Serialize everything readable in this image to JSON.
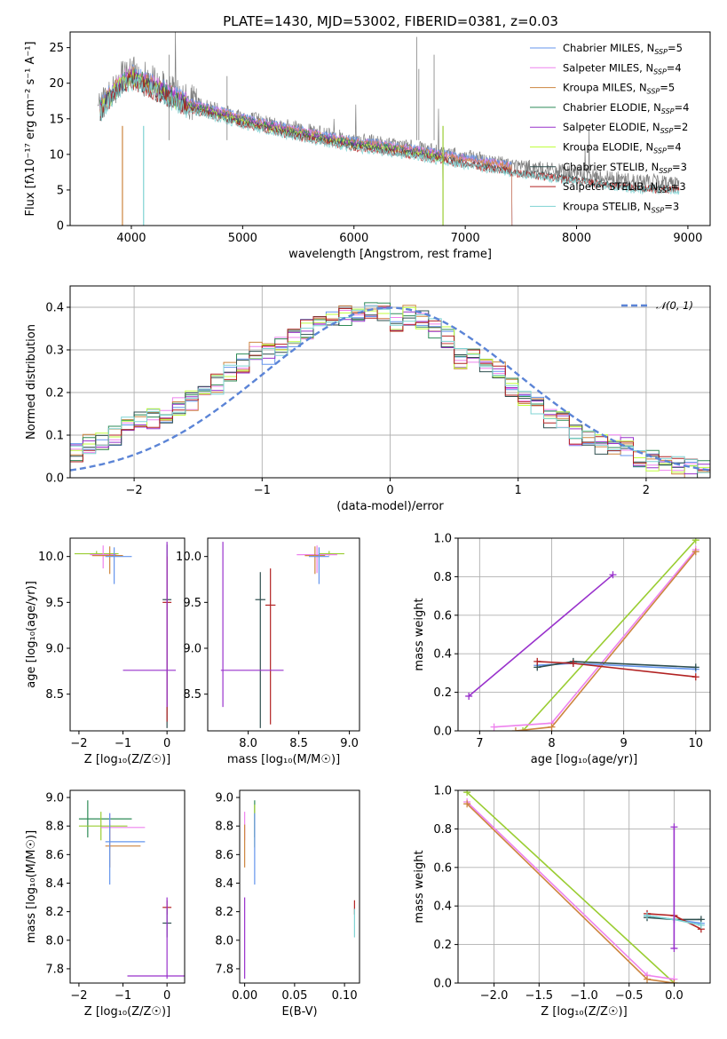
{
  "chart_data": [
    {
      "id": "spectrum",
      "type": "line",
      "title": "PLATE=1430, MJD=53002, FIBERID=0381, z=0.03",
      "xlabel": "wavelength [Angstrom, rest frame]",
      "ylabel": "Flux [fλ10⁻¹⁷ erg cm⁻² s⁻¹ A⁻¹]",
      "xlim": [
        3450,
        9200
      ],
      "ylim": [
        0,
        27.2
      ],
      "xticks": [
        4000,
        5000,
        6000,
        7000,
        8000,
        9000
      ],
      "yticks": [
        0,
        5,
        10,
        15,
        20,
        25
      ],
      "legend_position": "top-right",
      "data_trace": {
        "name": "",
        "color": "#808080",
        "x": [
          3700,
          3800,
          3900,
          4000,
          4200,
          4500,
          5000,
          5500,
          6000,
          6500,
          7000,
          7500,
          8000,
          8500,
          8920
        ],
        "y": [
          16.5,
          18.5,
          20.5,
          21.5,
          20.0,
          17.5,
          15.3,
          13.5,
          12.0,
          11.0,
          9.6,
          8.3,
          7.3,
          6.3,
          6.0
        ]
      },
      "series": [
        {
          "name": "Chabrier MILES, N",
          "sub": "SSP",
          "suffix": "=5",
          "color": "#6495ed",
          "xmax": 7420
        },
        {
          "name": "Salpeter MILES, N",
          "sub": "SSP",
          "suffix": "=4",
          "color": "#ee82ee",
          "xmax": 7420
        },
        {
          "name": "Kroupa MILES, N",
          "sub": "SSP",
          "suffix": "=5",
          "color": "#cd853f",
          "xmax": 7420
        },
        {
          "name": "Chabrier ELODIE, N",
          "sub": "SSP",
          "suffix": "=4",
          "color": "#2e8b57",
          "xmax": 6800
        },
        {
          "name": "Salpeter ELODIE, N",
          "sub": "SSP",
          "suffix": "=2",
          "color": "#9932cc",
          "xmax": 6800
        },
        {
          "name": "Kroupa ELODIE, N",
          "sub": "SSP",
          "suffix": "=4",
          "color": "#c0ff3e",
          "xmax": 6800
        },
        {
          "name": "Chabrier STELIB, N",
          "sub": "SSP",
          "suffix": "=3",
          "color": "#2f4f4f",
          "xmax": 8920
        },
        {
          "name": "Salpeter STELIB, N",
          "sub": "SSP",
          "suffix": "=3",
          "color": "#b22222",
          "xmax": 8920
        },
        {
          "name": "Kroupa STELIB, N",
          "sub": "SSP",
          "suffix": "=3",
          "color": "#7fd3d3",
          "xmax": 8920
        }
      ]
    },
    {
      "id": "residuals",
      "type": "line",
      "xlabel": "(data-model)/error",
      "ylabel": "Normed distribution",
      "xlim": [
        -2.5,
        2.5
      ],
      "ylim": [
        0,
        0.45
      ],
      "xticks": [
        -2,
        -1,
        0,
        1,
        2
      ],
      "xticklabels": [
        "−2",
        "−1",
        "0",
        "1",
        "2"
      ],
      "yticks": [
        0.0,
        0.1,
        0.2,
        0.3,
        0.4
      ],
      "yticklabels": [
        "0.0",
        "0.1",
        "0.2",
        "0.3",
        "0.4"
      ],
      "grid": true,
      "legend_position": "top-right",
      "gauss_label": "𝒩(0, 1)",
      "gauss_color": "#5b84d6",
      "hist_base": [
        0.06,
        0.08,
        0.09,
        0.1,
        0.12,
        0.13,
        0.14,
        0.15,
        0.17,
        0.18,
        0.2,
        0.22,
        0.25,
        0.27,
        0.3,
        0.29,
        0.31,
        0.33,
        0.35,
        0.36,
        0.37,
        0.38,
        0.38,
        0.39,
        0.39,
        0.36,
        0.38,
        0.37,
        0.35,
        0.33,
        0.28,
        0.29,
        0.26,
        0.25,
        0.21,
        0.19,
        0.17,
        0.14,
        0.13,
        0.1,
        0.09,
        0.08,
        0.08,
        0.07,
        0.05,
        0.04,
        0.03,
        0.03,
        0.02,
        0.02
      ]
    },
    {
      "id": "age_vs_Z",
      "type": "scatter",
      "xlabel": "Z [log₁₀(Z/Z☉)]",
      "ylabel": "age  [log₁₀(age/yr)]",
      "xlim": [
        -2.2,
        0.4
      ],
      "ylim": [
        8.1,
        10.2
      ],
      "xticks": [
        -2,
        -1,
        0
      ],
      "xticklabels": [
        "−2",
        "−1",
        "0"
      ],
      "yticks": [
        8.5,
        9.0,
        9.5,
        10.0
      ],
      "yticklabels": [
        "8.5",
        "9.0",
        "9.5",
        "10.0"
      ],
      "points": [
        {
          "x": -1.6,
          "y": 10.03,
          "ex": [
            0.5,
            0.5
          ],
          "ey": [
            0.02,
            0.03
          ],
          "c": "#9acd32"
        },
        {
          "x": -1.45,
          "y": 10.02,
          "ex": [
            0.3,
            0.3
          ],
          "ey": [
            0.15,
            0.1
          ],
          "c": "#ee82ee"
        },
        {
          "x": -1.3,
          "y": 10.01,
          "ex": [
            0.4,
            0.3
          ],
          "ey": [
            0.2,
            0.1
          ],
          "c": "#cd853f"
        },
        {
          "x": -1.2,
          "y": 10.0,
          "ex": [
            0.2,
            0.4
          ],
          "ey": [
            0.3,
            0.1
          ],
          "c": "#6495ed"
        },
        {
          "x": 0.0,
          "y": 9.53,
          "ex": [
            0.1,
            0.1
          ],
          "ey": [
            1.4,
            0.6
          ],
          "c": "#2f4f4f"
        },
        {
          "x": 0.0,
          "y": 9.5,
          "ex": [
            0.1,
            0.1
          ],
          "ey": [
            1.3,
            0.5
          ],
          "c": "#b22222"
        },
        {
          "x": 0.0,
          "y": 8.76,
          "ex": [
            1.0,
            0.2
          ],
          "ey": [
            0.4,
            1.4
          ],
          "c": "#9932cc"
        }
      ]
    },
    {
      "id": "age_vs_mass",
      "type": "scatter",
      "xlabel": "mass [log₁₀(M/M☉)]",
      "ylabel": "",
      "xlim": [
        7.6,
        9.1
      ],
      "ylim": [
        8.1,
        10.2
      ],
      "xticks": [
        8.0,
        8.5,
        9.0
      ],
      "xticklabels": [
        "8.0",
        "8.5",
        "9.0"
      ],
      "yticks": [
        8.5,
        9.0,
        9.5,
        10.0
      ],
      "yticklabels": [
        "8.5",
        "9.0",
        "9.5",
        "10.0"
      ],
      "points": [
        {
          "x": 8.8,
          "y": 10.03,
          "ex": [
            0.1,
            0.15
          ],
          "ey": [
            0.02,
            0.03
          ],
          "c": "#9acd32"
        },
        {
          "x": 8.68,
          "y": 10.02,
          "ex": [
            0.2,
            0.2
          ],
          "ey": [
            0.2,
            0.1
          ],
          "c": "#ee82ee"
        },
        {
          "x": 8.66,
          "y": 10.01,
          "ex": [
            0.1,
            0.1
          ],
          "ey": [
            0.2,
            0.1
          ],
          "c": "#cd853f"
        },
        {
          "x": 8.7,
          "y": 10.0,
          "ex": [
            0.1,
            0.1
          ],
          "ey": [
            0.3,
            0.1
          ],
          "c": "#6495ed"
        },
        {
          "x": 8.12,
          "y": 9.53,
          "ex": [
            0.05,
            0.05
          ],
          "ey": [
            1.4,
            0.3
          ],
          "c": "#2f4f4f"
        },
        {
          "x": 8.22,
          "y": 9.47,
          "ex": [
            0.05,
            0.05
          ],
          "ey": [
            1.3,
            0.4
          ],
          "c": "#b22222"
        },
        {
          "x": 7.75,
          "y": 8.76,
          "ex": [
            0.02,
            0.6
          ],
          "ey": [
            0.4,
            1.4
          ],
          "c": "#9932cc"
        }
      ]
    },
    {
      "id": "weight_vs_age",
      "type": "line",
      "xlabel": "age  [log₁₀(age/yr)]",
      "ylabel": "mass weight",
      "xlim": [
        6.7,
        10.2
      ],
      "ylim": [
        0,
        1.0
      ],
      "xticks": [
        7,
        8,
        9,
        10
      ],
      "xticklabels": [
        "7",
        "8",
        "9",
        "10"
      ],
      "yticks": [
        0.0,
        0.2,
        0.4,
        0.6,
        0.8,
        1.0
      ],
      "yticklabels": [
        "0.0",
        "0.2",
        "0.4",
        "0.6",
        "0.8",
        "1.0"
      ],
      "grid": true,
      "series": [
        {
          "c": "#9932cc",
          "x": [
            6.85,
            8.85
          ],
          "y": [
            0.18,
            0.81
          ]
        },
        {
          "c": "#9acd32",
          "x": [
            7.6,
            10.0
          ],
          "y": [
            0.0,
            0.99
          ]
        },
        {
          "c": "#ee82ee",
          "x": [
            7.2,
            8.0,
            10.0
          ],
          "y": [
            0.02,
            0.04,
            0.94
          ]
        },
        {
          "c": "#cd853f",
          "x": [
            7.5,
            8.0,
            10.0
          ],
          "y": [
            0.0,
            0.02,
            0.93
          ]
        },
        {
          "c": "#6495ed",
          "x": [
            7.8,
            8.3,
            10.0
          ],
          "y": [
            0.34,
            0.35,
            0.32
          ]
        },
        {
          "c": "#2f4f4f",
          "x": [
            7.8,
            8.3,
            10.0
          ],
          "y": [
            0.33,
            0.36,
            0.33
          ]
        },
        {
          "c": "#b22222",
          "x": [
            7.8,
            8.3,
            10.0
          ],
          "y": [
            0.36,
            0.35,
            0.28
          ]
        }
      ]
    },
    {
      "id": "mass_vs_Z",
      "type": "scatter",
      "xlabel": "Z [log₁₀(Z/Z☉)]",
      "ylabel": "mass [log₁₀(M/M☉)]",
      "xlim": [
        -2.2,
        0.4
      ],
      "ylim": [
        7.7,
        9.05
      ],
      "xticks": [
        -2,
        -1,
        0
      ],
      "xticklabels": [
        "−2",
        "−1",
        "0"
      ],
      "yticks": [
        7.8,
        8.0,
        8.2,
        8.4,
        8.6,
        8.8,
        9.0
      ],
      "yticklabels": [
        "7.8",
        "8.0",
        "8.2",
        "8.4",
        "8.6",
        "8.8",
        "9.0"
      ],
      "points": [
        {
          "x": -1.8,
          "y": 8.85,
          "ex": [
            0.2,
            1.0
          ],
          "ey": [
            0.13,
            0.13
          ],
          "c": "#2e8b57"
        },
        {
          "x": -1.5,
          "y": 8.8,
          "ex": [
            0.5,
            0.6
          ],
          "ey": [
            0.1,
            0.1
          ],
          "c": "#9acd32"
        },
        {
          "x": -1.3,
          "y": 8.79,
          "ex": [
            0.2,
            0.8
          ],
          "ey": [
            0.15,
            0.1
          ],
          "c": "#ee82ee"
        },
        {
          "x": -1.3,
          "y": 8.66,
          "ex": [
            0.1,
            0.7
          ],
          "ey": [
            0.15,
            0.15
          ],
          "c": "#cd853f"
        },
        {
          "x": -1.3,
          "y": 8.69,
          "ex": [
            0.1,
            0.8
          ],
          "ey": [
            0.3,
            0.2
          ],
          "c": "#6495ed"
        },
        {
          "x": 0.0,
          "y": 8.23,
          "ex": [
            0.1,
            0.1
          ],
          "ey": [
            0.05,
            0.05
          ],
          "c": "#b22222"
        },
        {
          "x": 0.0,
          "y": 8.12,
          "ex": [
            0.1,
            0.1
          ],
          "ey": [
            0.1,
            0.1
          ],
          "c": "#2f4f4f"
        },
        {
          "x": 0.0,
          "y": 7.75,
          "ex": [
            0.9,
            1.0
          ],
          "ey": [
            0.02,
            0.55
          ],
          "c": "#9932cc"
        }
      ]
    },
    {
      "id": "mass_vs_ebv",
      "type": "scatter",
      "xlabel": "E(B-V)",
      "ylabel": "",
      "xlim": [
        -0.005,
        0.115
      ],
      "ylim": [
        7.7,
        9.05
      ],
      "xticks": [
        0.0,
        0.05,
        0.1
      ],
      "xticklabels": [
        "0.00",
        "0.05",
        "0.10"
      ],
      "yticks": [
        7.8,
        8.0,
        8.2,
        8.4,
        8.6,
        8.8,
        9.0
      ],
      "yticklabels": [
        "7.8",
        "8.0",
        "8.2",
        "8.4",
        "8.6",
        "8.8",
        "9.0"
      ],
      "points": [
        {
          "x": 0.0,
          "y": 8.8,
          "ex": [
            0,
            0
          ],
          "ey": [
            0.1,
            0.1
          ],
          "c": "#ee82ee"
        },
        {
          "x": 0.0,
          "y": 8.66,
          "ex": [
            0,
            0
          ],
          "ey": [
            0.15,
            0.15
          ],
          "c": "#cd853f"
        },
        {
          "x": 0.0,
          "y": 7.75,
          "ex": [
            0,
            0
          ],
          "ey": [
            0.02,
            0.55
          ],
          "c": "#9932cc"
        },
        {
          "x": 0.01,
          "y": 8.85,
          "ex": [
            0,
            0
          ],
          "ey": [
            0.13,
            0.13
          ],
          "c": "#2e8b57"
        },
        {
          "x": 0.01,
          "y": 8.8,
          "ex": [
            0,
            0
          ],
          "ey": [
            0.15,
            0.15
          ],
          "c": "#9acd32"
        },
        {
          "x": 0.01,
          "y": 8.69,
          "ex": [
            0,
            0
          ],
          "ey": [
            0.3,
            0.2
          ],
          "c": "#6495ed"
        },
        {
          "x": 0.11,
          "y": 8.23,
          "ex": [
            0,
            0
          ],
          "ey": [
            0.05,
            0.05
          ],
          "c": "#b22222"
        },
        {
          "x": 0.11,
          "y": 8.12,
          "ex": [
            0,
            0
          ],
          "ey": [
            0.1,
            0.1
          ],
          "c": "#7fd3d3"
        }
      ]
    },
    {
      "id": "weight_vs_Z",
      "type": "line",
      "xlabel": "Z [log₁₀(Z/Z☉)]",
      "ylabel": "mass weight",
      "xlim": [
        -2.4,
        0.4
      ],
      "ylim": [
        0,
        1.0
      ],
      "xticks": [
        -2.0,
        -1.5,
        -1.0,
        -0.5,
        0.0
      ],
      "xticklabels": [
        "−2.0",
        "−1.5",
        "−1.0",
        "−0.5",
        "0.0"
      ],
      "yticks": [
        0.0,
        0.2,
        0.4,
        0.6,
        0.8,
        1.0
      ],
      "yticklabels": [
        "0.0",
        "0.2",
        "0.4",
        "0.6",
        "0.8",
        "1.0"
      ],
      "grid": true,
      "series": [
        {
          "c": "#9acd32",
          "x": [
            -2.3,
            0.0
          ],
          "y": [
            0.99,
            0.0
          ]
        },
        {
          "c": "#ee82ee",
          "x": [
            -2.3,
            -0.3,
            0.0
          ],
          "y": [
            0.94,
            0.04,
            0.02
          ]
        },
        {
          "c": "#cd853f",
          "x": [
            -2.3,
            -0.3,
            0.0
          ],
          "y": [
            0.93,
            0.02,
            0.0
          ]
        },
        {
          "c": "#6495ed",
          "x": [
            -0.3,
            0.0,
            0.3
          ],
          "y": [
            0.35,
            0.33,
            0.31
          ]
        },
        {
          "c": "#2f4f4f",
          "x": [
            -0.3,
            0.0,
            0.3
          ],
          "y": [
            0.34,
            0.33,
            0.33
          ]
        },
        {
          "c": "#b22222",
          "x": [
            -0.3,
            0.0,
            0.3
          ],
          "y": [
            0.36,
            0.35,
            0.28
          ]
        },
        {
          "c": "#7fd3d3",
          "x": [
            -0.3,
            0.0,
            0.3
          ],
          "y": [
            0.35,
            0.33,
            0.3
          ]
        },
        {
          "c": "#9932cc",
          "x": [
            0.0,
            0.0
          ],
          "y": [
            0.18,
            0.81
          ]
        }
      ]
    }
  ]
}
